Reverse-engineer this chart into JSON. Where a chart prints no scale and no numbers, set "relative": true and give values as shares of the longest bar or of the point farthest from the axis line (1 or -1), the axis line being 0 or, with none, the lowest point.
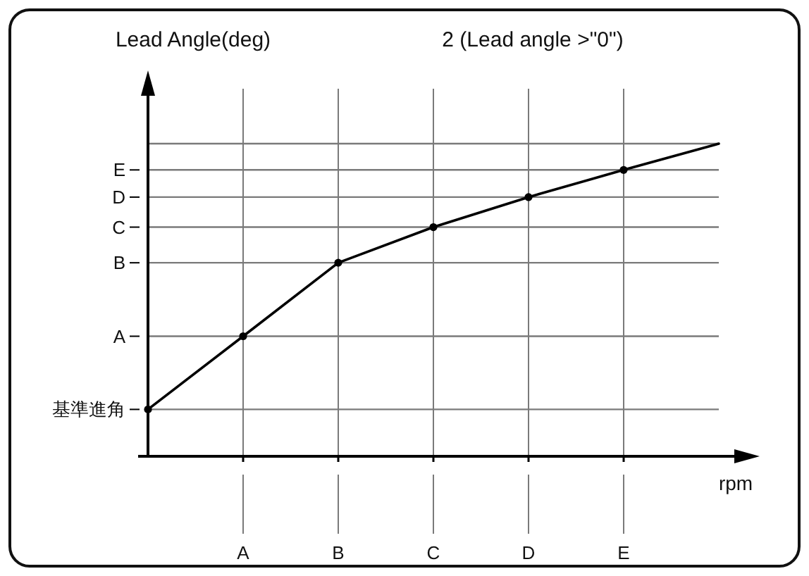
{
  "chart_data": {
    "type": "line",
    "title": "2 (Lead angle >\"0\")",
    "ylabel": "Lead Angle(deg)",
    "xlabel": "rpm",
    "relative": true,
    "grid": "x",
    "marker": "circle",
    "line_style": "solid",
    "categories": [
      null,
      "A",
      "B",
      "C",
      "D",
      "E",
      null
    ],
    "series": [
      {
        "color": "#000000",
        "values": [
          0.15,
          0.384,
          0.619,
          0.733,
          0.829,
          0.916,
          null
        ]
      },
      {
        "color": "#000000",
        "marker": "none",
        "values": [
          null,
          null,
          null,
          null,
          null,
          0.916,
          1.0
        ]
      }
    ],
    "ref_lines": [
      {
        "axis": "y",
        "value": 0.15,
        "label": "基準進角"
      },
      {
        "axis": "y",
        "value": 0.384,
        "label": "A"
      },
      {
        "axis": "y",
        "value": 0.619,
        "label": "B"
      },
      {
        "axis": "y",
        "value": 0.733,
        "label": "C"
      },
      {
        "axis": "y",
        "value": 0.829,
        "label": "D"
      },
      {
        "axis": "y",
        "value": 0.916,
        "label": "E"
      },
      {
        "axis": "y",
        "value": 1.0,
        "label": null
      }
    ]
  }
}
